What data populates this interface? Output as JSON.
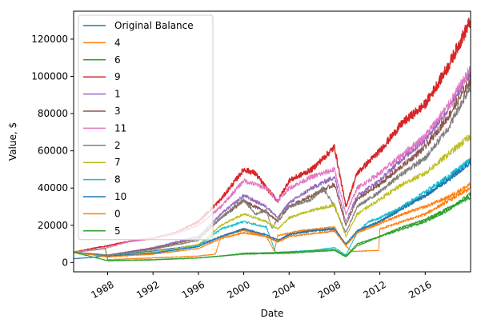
{
  "chart_data": {
    "type": "line",
    "xlabel": "Date",
    "ylabel": "Value, $",
    "xlim": [
      1985.0,
      2020.0
    ],
    "ylim": [
      -5000,
      135000
    ],
    "grid": false,
    "legend_position": "upper-left",
    "x_ticks": [
      {
        "value": 1988,
        "label": "1988"
      },
      {
        "value": 1992,
        "label": "1992"
      },
      {
        "value": 1996,
        "label": "1996"
      },
      {
        "value": 2000,
        "label": "2000"
      },
      {
        "value": 2004,
        "label": "2004"
      },
      {
        "value": 2008,
        "label": "2008"
      },
      {
        "value": 2012,
        "label": "2012"
      },
      {
        "value": 2016,
        "label": "2016"
      }
    ],
    "y_ticks": [
      {
        "value": 0,
        "label": "0"
      },
      {
        "value": 20000,
        "label": "20000"
      },
      {
        "value": 40000,
        "label": "40000"
      },
      {
        "value": 60000,
        "label": "60000"
      },
      {
        "value": 80000,
        "label": "80000"
      },
      {
        "value": 100000,
        "label": "100000"
      },
      {
        "value": 120000,
        "label": "120000"
      }
    ],
    "series": [
      {
        "name": "Original Balance",
        "color": "#1f77b4",
        "x": [
          1985,
          1988,
          1990,
          1992,
          1994,
          1996,
          1998,
          2000,
          2002,
          2003,
          2004,
          2006,
          2008,
          2009,
          2010,
          2012,
          2014,
          2016,
          2018,
          2020
        ],
        "values": [
          2000,
          3500,
          5000,
          6200,
          7800,
          9500,
          14000,
          18000,
          14000,
          11500,
          15000,
          17500,
          18000,
          10000,
          17000,
          22000,
          30000,
          36000,
          45000,
          55000
        ]
      },
      {
        "name": "4",
        "color": "#ff7f0e",
        "x": [
          1985,
          1987.8,
          1988,
          1992,
          1996,
          1997.5,
          1998,
          1999.5,
          2000,
          2002,
          2002.7,
          2003,
          2005,
          2008,
          2009,
          2009.5,
          2010,
          2011.9,
          2012,
          2014,
          2016,
          2018,
          2020
        ],
        "values": [
          5500,
          7500,
          1500,
          2500,
          3500,
          4500,
          14000,
          16500,
          17500,
          14000,
          6000,
          14500,
          17000,
          19000,
          9000,
          6000,
          6000,
          6500,
          18000,
          22000,
          26000,
          33000,
          40000
        ]
      },
      {
        "name": "6",
        "color": "#2ca02c",
        "x": [
          1985,
          1987.8,
          1988,
          1992,
          1996,
          2000,
          2004,
          2008,
          2009,
          2010,
          2012,
          2014,
          2016,
          2018,
          2020
        ],
        "values": [
          5500,
          7500,
          1000,
          1500,
          2500,
          4500,
          5000,
          6500,
          3000,
          9000,
          14000,
          18000,
          22000,
          28000,
          37000
        ]
      },
      {
        "name": "9",
        "color": "#d62728",
        "x": [
          1985,
          1987,
          1988,
          1990,
          1992,
          1994,
          1996,
          1998,
          2000,
          2001,
          2002,
          2003,
          2004,
          2006,
          2008,
          2009,
          2010,
          2012,
          2014,
          2016,
          2018,
          2020
        ],
        "values": [
          5500,
          8000,
          9000,
          11500,
          13000,
          16000,
          22000,
          34000,
          50000,
          48000,
          40000,
          33000,
          44000,
          50000,
          62000,
          30000,
          48000,
          60000,
          75000,
          85000,
          105000,
          130000
        ]
      },
      {
        "name": "1",
        "color": "#9467bd",
        "x": [
          1985,
          1988,
          1992,
          1996,
          1998,
          2000,
          2002,
          2003,
          2004,
          2006,
          2008,
          2009,
          2010,
          2012,
          2014,
          2016,
          2018,
          2020
        ],
        "values": [
          5500,
          4000,
          8000,
          14000,
          26000,
          36000,
          30000,
          24000,
          32000,
          40000,
          46000,
          22000,
          36000,
          44000,
          56000,
          66000,
          82000,
          103000
        ]
      },
      {
        "name": "3",
        "color": "#8c564b",
        "x": [
          1985,
          1988,
          1992,
          1996,
          1998,
          2000,
          2002,
          2003,
          2004,
          2006,
          2008,
          2009,
          2010,
          2012,
          2014,
          2016,
          2018,
          2020
        ],
        "values": [
          5500,
          4000,
          7500,
          13000,
          24000,
          33000,
          27000,
          22000,
          30000,
          36000,
          42000,
          20000,
          34000,
          42000,
          52000,
          62000,
          78000,
          98000
        ]
      },
      {
        "name": "11",
        "color": "#e377c2",
        "x": [
          1985,
          1988,
          1990,
          1992,
          1994,
          1996,
          1998,
          2000,
          2002,
          2003,
          2004,
          2006,
          2008,
          2009,
          2010,
          2012,
          2014,
          2016,
          2018,
          2020
        ],
        "values": [
          5500,
          8000,
          11500,
          13000,
          15500,
          20000,
          30000,
          44000,
          40000,
          33000,
          40000,
          46000,
          50000,
          26000,
          40000,
          48000,
          58000,
          68000,
          84000,
          104000
        ]
      },
      {
        "name": "2",
        "color": "#7f7f7f",
        "x": [
          1985,
          1988,
          1992,
          1996,
          1998,
          2000,
          2001,
          2002,
          2002.5,
          2003,
          2004,
          2006,
          2007,
          2008,
          2009,
          2010,
          2012,
          2014,
          2016,
          2018,
          2020
        ],
        "values": [
          5500,
          4000,
          7000,
          12000,
          24000,
          34000,
          26000,
          28000,
          18000,
          24000,
          30000,
          34000,
          40000,
          30000,
          16000,
          30000,
          38000,
          48000,
          56000,
          72000,
          95000
        ]
      },
      {
        "name": "7",
        "color": "#bcbd22",
        "x": [
          1985,
          1988,
          1992,
          1996,
          1998,
          2000,
          2002,
          2003,
          2004,
          2006,
          2008,
          2009,
          2010,
          2012,
          2014,
          2016,
          2018,
          2020
        ],
        "values": [
          5500,
          3500,
          5500,
          9500,
          20000,
          26000,
          22000,
          18000,
          24000,
          28000,
          31000,
          14000,
          26000,
          34000,
          42000,
          48000,
          58000,
          68000
        ]
      },
      {
        "name": "8",
        "color": "#17becf",
        "x": [
          1985,
          1988,
          1992,
          1996,
          1998,
          2000,
          2002,
          2002.8,
          2003,
          2006,
          2008,
          2009,
          2010,
          2011,
          2012,
          2014,
          2016,
          2018,
          2020
        ],
        "values": [
          5500,
          3000,
          5000,
          9000,
          18000,
          22000,
          19000,
          5500,
          5500,
          6500,
          8000,
          4000,
          16000,
          22000,
          24000,
          30000,
          38000,
          46000,
          55000
        ]
      },
      {
        "name": "10",
        "color": "#1f77b4",
        "x": [
          1985,
          1988,
          1992,
          1996,
          1998,
          2000,
          2002,
          2003,
          2004,
          2006,
          2008,
          2009,
          2010,
          2012,
          2014,
          2016,
          2018,
          2020
        ],
        "values": [
          5500,
          3500,
          5000,
          8500,
          14000,
          18000,
          15000,
          12000,
          15000,
          17000,
          18000,
          9500,
          17000,
          22000,
          29000,
          36000,
          44000,
          54000
        ]
      },
      {
        "name": "0",
        "color": "#ff7f0e",
        "x": [
          1985,
          1988,
          1992,
          1996,
          1998,
          2000,
          2002,
          2003,
          2004,
          2008,
          2009,
          2010,
          2012,
          2014,
          2016,
          2018,
          2020
        ],
        "values": [
          5500,
          3000,
          4500,
          7500,
          13000,
          16000,
          14000,
          11000,
          14000,
          17000,
          9000,
          16000,
          21000,
          26000,
          30000,
          35000,
          42000
        ]
      },
      {
        "name": "5",
        "color": "#2ca02c",
        "x": [
          1985,
          1988,
          1992,
          1996,
          1998,
          2000,
          2004,
          2008,
          2009,
          2010,
          2012,
          2014,
          2016,
          2018,
          2020
        ],
        "values": [
          5500,
          1000,
          1500,
          2500,
          3500,
          5000,
          5500,
          7000,
          3500,
          10000,
          14000,
          19000,
          23000,
          29000,
          35000
        ]
      }
    ]
  }
}
